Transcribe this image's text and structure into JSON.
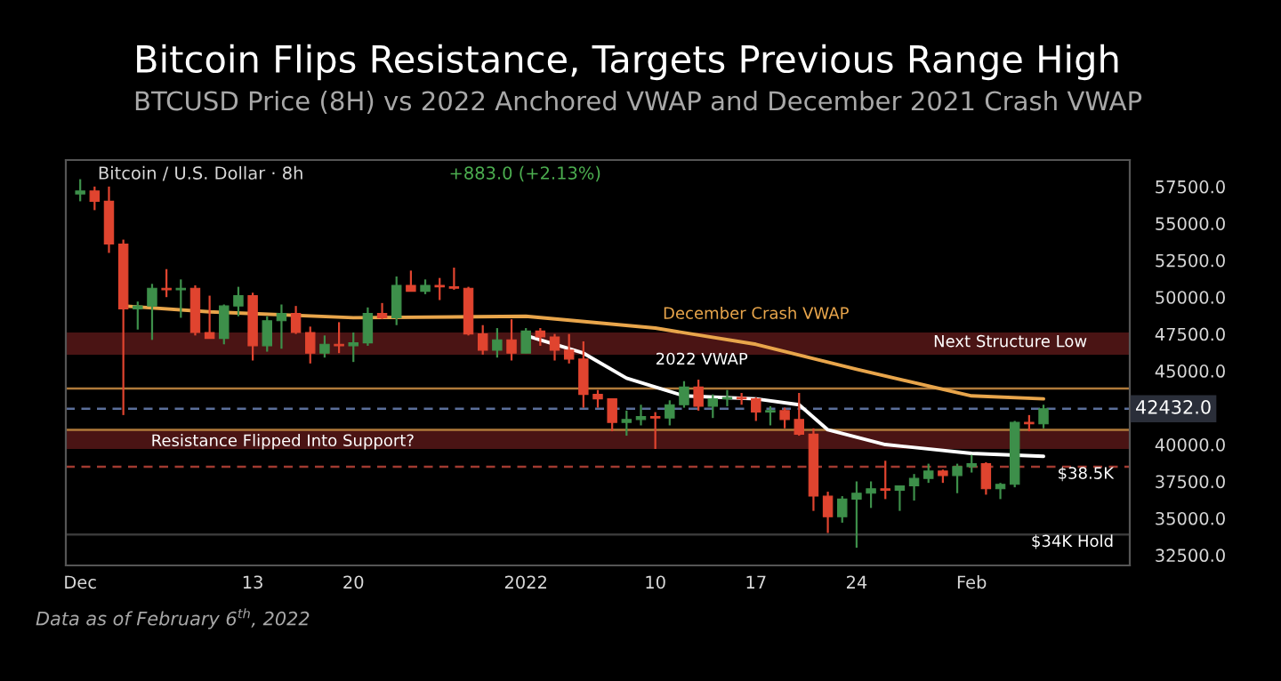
{
  "chart_data": {
    "type": "candlestick",
    "title": "Bitcoin Flips Resistance, Targets Previous Range High",
    "subtitle": "BTCUSD Price (8H) vs 2022 Anchored VWAP and December 2021 Crash VWAP",
    "annotations": [
      "Bitcoin / U.S. Dollar · 8h",
      "+883.0 (+2.13%)",
      "Data as of February 6$^{th}$, 2022"
    ],
    "x": [
      "2021-12-01",
      "2021-12-02",
      "2021-12-03",
      "2021-12-04",
      "2021-12-05",
      "2021-12-06",
      "2021-12-07",
      "2021-12-08",
      "2021-12-09",
      "2021-12-10",
      "2021-12-11",
      "2021-12-12",
      "2021-12-13",
      "2021-12-14",
      "2021-12-15",
      "2021-12-16",
      "2021-12-17",
      "2021-12-18",
      "2021-12-19",
      "2021-12-20",
      "2021-12-21",
      "2021-12-22",
      "2021-12-23",
      "2021-12-24",
      "2021-12-25",
      "2021-12-26",
      "2021-12-27",
      "2021-12-28",
      "2021-12-29",
      "2021-12-30",
      "2021-12-31",
      "2022-01-01",
      "2022-01-02",
      "2022-01-03",
      "2022-01-04",
      "2022-01-05",
      "2022-01-06",
      "2022-01-07",
      "2022-01-08",
      "2022-01-09",
      "2022-01-10",
      "2022-01-11",
      "2022-01-12",
      "2022-01-13",
      "2022-01-14",
      "2022-01-15",
      "2022-01-16",
      "2022-01-17",
      "2022-01-18",
      "2022-01-19",
      "2022-01-20",
      "2022-01-21",
      "2022-01-22",
      "2022-01-23",
      "2022-01-24",
      "2022-01-25",
      "2022-01-26",
      "2022-01-27",
      "2022-01-28",
      "2022-01-29",
      "2022-01-30",
      "2022-01-31",
      "2022-02-01",
      "2022-02-02",
      "2022-02-03",
      "2022-02-04",
      "2022-02-05",
      "2022-02-06"
    ],
    "ohlc": [
      [
        57000,
        58000,
        56500,
        57200
      ],
      [
        57200,
        57500,
        55900,
        56500
      ],
      [
        56500,
        57500,
        53000,
        53600
      ],
      [
        53600,
        53900,
        42000,
        49200
      ],
      [
        49200,
        49700,
        47800,
        49400
      ],
      [
        49400,
        50900,
        47100,
        50600
      ],
      [
        50600,
        51900,
        50000,
        50500
      ],
      [
        50500,
        51200,
        48600,
        50600
      ],
      [
        50600,
        50800,
        47400,
        47600
      ],
      [
        47600,
        50100,
        47200,
        47200
      ],
      [
        47200,
        49500,
        46800,
        49400
      ],
      [
        49400,
        50700,
        48700,
        50100
      ],
      [
        50100,
        50300,
        45700,
        46700
      ],
      [
        46700,
        48700,
        46300,
        48400
      ],
      [
        48400,
        49500,
        46500,
        48900
      ],
      [
        48900,
        49400,
        47500,
        47600
      ],
      [
        47600,
        48000,
        45500,
        46200
      ],
      [
        46200,
        47400,
        45900,
        46800
      ],
      [
        46800,
        48300,
        46200,
        46700
      ],
      [
        46700,
        47600,
        45600,
        46900
      ],
      [
        46900,
        49300,
        46700,
        48900
      ],
      [
        48900,
        49600,
        48500,
        48600
      ],
      [
        48600,
        51400,
        48100,
        50800
      ],
      [
        50800,
        51800,
        50400,
        50400
      ],
      [
        50400,
        51200,
        50200,
        50800
      ],
      [
        50800,
        51300,
        49800,
        50700
      ],
      [
        50700,
        52000,
        50500,
        50600
      ],
      [
        50600,
        50700,
        47400,
        47500
      ],
      [
        47500,
        48100,
        46100,
        46400
      ],
      [
        46400,
        47900,
        45900,
        47100
      ],
      [
        47100,
        48500,
        45700,
        46200
      ],
      [
        46200,
        47900,
        46200,
        47700
      ],
      [
        47700,
        47900,
        46700,
        47300
      ],
      [
        47300,
        47500,
        45700,
        46400
      ],
      [
        46400,
        47500,
        45500,
        45800
      ],
      [
        45800,
        47000,
        42500,
        43400
      ],
      [
        43400,
        43700,
        42500,
        43100
      ],
      [
        43100,
        43100,
        40900,
        41500
      ],
      [
        41500,
        42300,
        40600,
        41700
      ],
      [
        41700,
        42700,
        41300,
        41900
      ],
      [
        41900,
        42200,
        39700,
        41800
      ],
      [
        41800,
        43000,
        41300,
        42700
      ],
      [
        42700,
        44300,
        42500,
        43900
      ],
      [
        43900,
        44400,
        42300,
        42600
      ],
      [
        42600,
        43400,
        41800,
        43100
      ],
      [
        43100,
        43700,
        42600,
        43200
      ],
      [
        43200,
        43500,
        42700,
        43100
      ],
      [
        43100,
        43200,
        41600,
        42200
      ],
      [
        42200,
        42600,
        41300,
        42300
      ],
      [
        42300,
        42500,
        41100,
        41700
      ],
      [
        41700,
        43500,
        40600,
        40700
      ],
      [
        40700,
        41100,
        35500,
        36500
      ],
      [
        36500,
        36800,
        34000,
        35100
      ],
      [
        35100,
        36500,
        34700,
        36300
      ],
      [
        36300,
        37500,
        33000,
        36700
      ],
      [
        36700,
        37500,
        35700,
        37000
      ],
      [
        37000,
        38900,
        36300,
        36900
      ],
      [
        36900,
        37200,
        35500,
        37200
      ],
      [
        37200,
        38000,
        36200,
        37700
      ],
      [
        37700,
        38700,
        37400,
        38200
      ],
      [
        38200,
        38300,
        37400,
        37900
      ],
      [
        37900,
        38700,
        36700,
        38500
      ],
      [
        38500,
        39300,
        38100,
        38700
      ],
      [
        38700,
        38800,
        36600,
        37000
      ],
      [
        37000,
        37400,
        36300,
        37300
      ],
      [
        37300,
        41600,
        37100,
        41500
      ],
      [
        41500,
        42000,
        40900,
        41400
      ],
      [
        41400,
        42700,
        41100,
        42432
      ]
    ],
    "colors": [
      "#3d8f4a",
      "#e0442f",
      "#e0442f",
      "#e0442f",
      "#3d8f4a",
      "#3d8f4a",
      "#e0442f",
      "#3d8f4a",
      "#e0442f",
      "#e0442f",
      "#3d8f4a",
      "#3d8f4a",
      "#e0442f",
      "#3d8f4a",
      "#3d8f4a",
      "#e0442f",
      "#e0442f",
      "#3d8f4a",
      "#e0442f",
      "#3d8f4a",
      "#3d8f4a",
      "#e0442f",
      "#3d8f4a",
      "#e0442f",
      "#3d8f4a",
      "#e0442f",
      "#e0442f",
      "#e0442f",
      "#e0442f",
      "#3d8f4a",
      "#e0442f",
      "#3d8f4a",
      "#e0442f",
      "#e0442f",
      "#e0442f",
      "#e0442f",
      "#e0442f",
      "#e0442f",
      "#3d8f4a",
      "#3d8f4a",
      "#e0442f",
      "#3d8f4a",
      "#3d8f4a",
      "#e0442f",
      "#3d8f4a",
      "#3d8f4a",
      "#e0442f",
      "#e0442f",
      "#3d8f4a",
      "#e0442f",
      "#e0442f",
      "#e0442f",
      "#e0442f",
      "#3d8f4a",
      "#3d8f4a",
      "#3d8f4a",
      "#e0442f",
      "#3d8f4a",
      "#3d8f4a",
      "#3d8f4a",
      "#e0442f",
      "#3d8f4a",
      "#3d8f4a",
      "#e0442f",
      "#3d8f4a",
      "#3d8f4a",
      "#e0442f",
      "#3d8f4a"
    ],
    "series": [
      {
        "name": "December Crash VWAP",
        "type": "line",
        "color": "#e8a54b",
        "x": [
          "2021-12-04",
          "2021-12-10",
          "2021-12-20",
          "2022-01-01",
          "2022-01-10",
          "2022-01-17",
          "2022-01-24",
          "2022-02-01",
          "2022-02-06"
        ],
        "values": [
          49400,
          49000,
          48600,
          48700,
          47900,
          46800,
          45100,
          43300,
          43100
        ]
      },
      {
        "name": "2022 VWAP",
        "type": "line",
        "color": "#ffffff",
        "x": [
          "2022-01-01",
          "2022-01-05",
          "2022-01-08",
          "2022-01-12",
          "2022-01-17",
          "2022-01-20",
          "2022-01-22",
          "2022-01-26",
          "2022-02-01",
          "2022-02-06"
        ],
        "values": [
          47400,
          46200,
          44500,
          43300,
          43100,
          42700,
          41000,
          40000,
          39400,
          39200
        ]
      }
    ],
    "bands": [
      {
        "axis": "y",
        "from": 46100,
        "to": 47600,
        "label": "Next Structure Low",
        "color": "#4a1414"
      },
      {
        "axis": "y",
        "from": 39700,
        "to": 41000,
        "label": "Resistance Flipped Into Support?",
        "color": "#4a1414"
      }
    ],
    "ref_lines": [
      {
        "axis": "y",
        "value": 43800,
        "color": "#b07a3a",
        "line_style": "solid"
      },
      {
        "axis": "y",
        "value": 41000,
        "color": "#b07a3a",
        "line_style": "solid"
      },
      {
        "axis": "y",
        "value": 42432,
        "label": "42432.0",
        "color": "#5b6f9a",
        "line_style": "dashed"
      },
      {
        "axis": "y",
        "value": 38500,
        "label": "$38.5K",
        "color": "#a03a30",
        "line_style": "dashed"
      },
      {
        "axis": "y",
        "value": 33900,
        "label": "$34K Hold",
        "color": "#3a3a3a",
        "line_style": "solid"
      }
    ],
    "xlim": [
      "2021-11-30",
      "2022-02-12"
    ],
    "xticks": [
      {
        "value": "2021-12-01",
        "label": "Dec"
      },
      {
        "value": "2021-12-13",
        "label": "13"
      },
      {
        "value": "2021-12-20",
        "label": "20"
      },
      {
        "value": "2022-01-01",
        "label": "2022"
      },
      {
        "value": "2022-01-10",
        "label": "10"
      },
      {
        "value": "2022-01-17",
        "label": "17"
      },
      {
        "value": "2022-01-24",
        "label": "24"
      },
      {
        "value": "2022-02-01",
        "label": "Feb"
      }
    ],
    "ylim": [
      31800,
      59300
    ],
    "yticks": [
      {
        "value": 32500,
        "label": "32500.0"
      },
      {
        "value": 35000,
        "label": "35000.0"
      },
      {
        "value": 37500,
        "label": "37500.0"
      },
      {
        "value": 40000,
        "label": "40000.0"
      },
      {
        "value": 42500,
        "label": null
      },
      {
        "value": 45000,
        "label": "45000.0"
      },
      {
        "value": 47500,
        "label": "47500.0"
      },
      {
        "value": 50000,
        "label": "50000.0"
      },
      {
        "value": 52500,
        "label": "52500.0"
      },
      {
        "value": 55000,
        "label": "55000.0"
      },
      {
        "value": 57500,
        "label": "57500.0"
      }
    ],
    "grid": false,
    "legend": false
  }
}
